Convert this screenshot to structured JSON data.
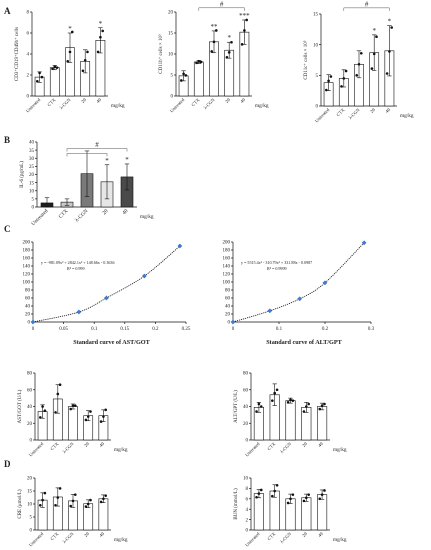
{
  "panel_labels": [
    "A",
    "B",
    "C",
    "D"
  ],
  "chart_data": [
    {
      "id": "A1",
      "panel": "A",
      "type": "bar",
      "categories": [
        "Untreated",
        "CTX",
        "λ-CGN",
        "20",
        "40"
      ],
      "unit": "mg/kg",
      "ylabel": "CD3⁺CD19⁺CD49b⁺ cells",
      "ylim": [
        0,
        8
      ],
      "yticks": [
        0,
        2,
        4,
        6,
        8
      ],
      "values": [
        1.8,
        2.7,
        4.6,
        3.3,
        5.3
      ],
      "errors": [
        0.5,
        0.2,
        1.4,
        1.1,
        1.2
      ],
      "points": [
        [
          1.4,
          2.2,
          1.8
        ],
        [
          2.6,
          2.8,
          2.7
        ],
        [
          3.3,
          4.2,
          6.1
        ],
        [
          2.4,
          3.4,
          4.2
        ],
        [
          4.2,
          5.6,
          6.2
        ]
      ],
      "fills": [
        "#ffffff",
        "#ffffff",
        "#ffffff",
        "#ffffff",
        "#ffffff"
      ],
      "annotations": [
        {
          "cat": 2,
          "text": "*"
        },
        {
          "cat": 4,
          "text": "*"
        }
      ],
      "brackets": []
    },
    {
      "id": "A2",
      "panel": "A",
      "type": "bar",
      "categories": [
        "Untreated",
        "CTX",
        "λ-CGN",
        "20",
        "40"
      ],
      "unit": "mg/kg",
      "ylabel": "CD11b⁺ cells × 10⁵",
      "ylim": [
        0,
        20
      ],
      "yticks": [
        0,
        5,
        10,
        15,
        20
      ],
      "values": [
        4.8,
        8.1,
        12.9,
        10.9,
        15.2
      ],
      "errors": [
        1.2,
        0.4,
        2.6,
        1.9,
        2.9
      ],
      "points": [
        [
          3.7,
          5.3,
          4.9
        ],
        [
          7.9,
          8.2,
          8.1
        ],
        [
          10.6,
          12.9,
          15.6
        ],
        [
          9.2,
          10.4,
          12.8
        ],
        [
          12.3,
          15.6,
          18.1
        ]
      ],
      "fills": [
        "#ffffff",
        "#ffffff",
        "#ffffff",
        "#ffffff",
        "#ffffff"
      ],
      "annotations": [
        {
          "cat": 2,
          "text": "**"
        },
        {
          "cat": 3,
          "text": "*"
        },
        {
          "cat": 4,
          "text": "***"
        }
      ],
      "brackets": [
        {
          "from": 1,
          "to": 4,
          "level": 21,
          "text": "#"
        }
      ]
    },
    {
      "id": "A3",
      "panel": "A",
      "type": "bar",
      "categories": [
        "Untreated",
        "CTX",
        "λ-CGN",
        "20",
        "40"
      ],
      "unit": "mg/kg",
      "ylabel": "CD11c⁺ cells × 10⁵",
      "ylim": [
        0,
        15
      ],
      "yticks": [
        0,
        5,
        10,
        15
      ],
      "values": [
        3.8,
        4.5,
        6.8,
        8.7,
        9.0
      ],
      "errors": [
        1.3,
        1.4,
        2.2,
        2.9,
        4.1
      ],
      "points": [
        [
          2.6,
          4.1,
          4.8
        ],
        [
          3.2,
          4.5,
          5.7
        ],
        [
          5.0,
          6.8,
          8.6
        ],
        [
          6.1,
          8.5,
          11.3
        ],
        [
          5.3,
          8.9,
          12.8
        ]
      ],
      "fills": [
        "#ffffff",
        "#ffffff",
        "#ffffff",
        "#ffffff",
        "#ffffff"
      ],
      "annotations": [
        {
          "cat": 3,
          "text": "*"
        },
        {
          "cat": 4,
          "text": "*"
        }
      ],
      "brackets": [
        {
          "from": 1,
          "to": 4,
          "level": 16,
          "text": "#"
        }
      ]
    },
    {
      "id": "B",
      "panel": "B",
      "type": "bar",
      "categories": [
        "Untreated",
        "CTX",
        "λ-CGN",
        "20",
        "40"
      ],
      "unit": "mg/kg",
      "ylabel": "IL-6 (pg/mL)",
      "ylim": [
        0,
        40
      ],
      "yticks": [
        0,
        5,
        10,
        15,
        20,
        25,
        30,
        35,
        40
      ],
      "values": [
        2.5,
        3.0,
        20.5,
        15.5,
        18.5
      ],
      "errors": [
        3.2,
        2.0,
        14.0,
        10.5,
        8.0
      ],
      "points": [],
      "fills": [
        "#1e1e1e",
        "#c8c8c8",
        "#7a7a7a",
        "#e6e6e6",
        "#4a4a4a"
      ],
      "annotations": [
        {
          "cat": 3,
          "text": "*"
        },
        {
          "cat": 4,
          "text": "*"
        }
      ],
      "brackets": [
        {
          "from": 1,
          "to": 4,
          "level": 36,
          "text": "#"
        },
        {
          "from": 1,
          "to": 3,
          "level": 33,
          "text": ""
        }
      ]
    },
    {
      "id": "C1",
      "panel": "C",
      "type": "line",
      "title": "Standard curve of AST/GOT",
      "xlim": [
        0,
        0.25
      ],
      "xticks": [
        0,
        0.05,
        0.1,
        0.15,
        0.2,
        0.25
      ],
      "ylim": [
        0,
        200
      ],
      "yticks": [
        0,
        20,
        40,
        60,
        80,
        100,
        120,
        140,
        160,
        180,
        200
      ],
      "x": [
        0,
        0.075,
        0.12,
        0.182,
        0.24
      ],
      "y": [
        0,
        25,
        60,
        115,
        190
      ],
      "equation": "y = -981.09x³ + 2842.1x² + 148.66x - 0.3636",
      "r2": "R² = 0.999"
    },
    {
      "id": "C2",
      "panel": "C",
      "type": "line",
      "title": "Standard curve of ALT/GPT",
      "xlim": [
        0,
        0.3
      ],
      "xticks": [
        0,
        0.1,
        0.2,
        0.3
      ],
      "ylim": [
        0,
        200
      ],
      "yticks": [
        0,
        20,
        40,
        60,
        80,
        100,
        120,
        140,
        160,
        180,
        200
      ],
      "x": [
        0,
        0.08,
        0.145,
        0.2,
        0.285
      ],
      "y": [
        0,
        28,
        58,
        98,
        198
      ],
      "equation": "y = 5515.4x³ - 310.79x² + 331.88x - 0.0987",
      "r2": "R² = 0.9999"
    },
    {
      "id": "C3",
      "panel": "C",
      "type": "bar",
      "categories": [
        "Untreated",
        "CTX",
        "λ-CGN",
        "20",
        "40"
      ],
      "unit": "mg/kg",
      "ylabel": "AST/GOT (U/L)",
      "ylim": [
        0,
        80
      ],
      "yticks": [
        0,
        20,
        40,
        60,
        80
      ],
      "values": [
        34,
        49,
        40,
        29,
        29
      ],
      "errors": [
        8,
        17,
        3,
        6,
        7
      ],
      "points": [
        [
          27,
          40,
          35
        ],
        [
          33,
          55,
          66
        ],
        [
          37,
          41,
          41
        ],
        [
          24,
          28,
          34
        ],
        [
          22,
          28,
          36
        ]
      ],
      "fills": [
        "#ffffff",
        "#ffffff",
        "#ffffff",
        "#ffffff",
        "#ffffff"
      ],
      "annotations": [],
      "brackets": []
    },
    {
      "id": "C4",
      "panel": "C",
      "type": "bar",
      "categories": [
        "Untreated",
        "CTX",
        "λ-CGN",
        "20",
        "40"
      ],
      "unit": "mg/kg",
      "ylabel": "ALT/GPT (U/L)",
      "ylim": [
        0,
        80
      ],
      "yticks": [
        0,
        20,
        40,
        60,
        80
      ],
      "values": [
        39,
        54,
        47,
        39,
        40
      ],
      "errors": [
        6,
        13,
        3,
        6,
        4
      ],
      "points": [
        [
          34,
          43,
          40
        ],
        [
          47,
          56,
          60
        ],
        [
          45,
          48,
          47
        ],
        [
          34,
          40,
          43
        ],
        [
          37,
          41,
          43
        ]
      ],
      "fills": [
        "#ffffff",
        "#ffffff",
        "#ffffff",
        "#ffffff",
        "#ffffff"
      ],
      "annotations": [],
      "brackets": []
    },
    {
      "id": "D1",
      "panel": "D",
      "type": "bar",
      "categories": [
        "Untreated",
        "CTX",
        "λ-CGN",
        "20",
        "40"
      ],
      "unit": "mg/kg",
      "ylabel": "CRE (μmol/L)",
      "ylim": [
        0,
        20
      ],
      "yticks": [
        0,
        5,
        10,
        15,
        20
      ],
      "values": [
        11.5,
        12.7,
        11.2,
        10.1,
        12.0
      ],
      "errors": [
        2.8,
        3.5,
        2.5,
        1.5,
        1.5
      ],
      "points": [
        [
          9.5,
          11.5,
          14.2
        ],
        [
          9.5,
          12.5,
          16.0
        ],
        [
          9.2,
          11.2,
          13.6
        ],
        [
          9.0,
          10.0,
          11.5
        ],
        [
          10.8,
          12.0,
          13.2
        ]
      ],
      "fills": [
        "#ffffff",
        "#ffffff",
        "#ffffff",
        "#ffffff",
        "#ffffff"
      ],
      "annotations": [],
      "brackets": []
    },
    {
      "id": "D2",
      "panel": "D",
      "type": "bar",
      "categories": [
        "Untreated",
        "CTX",
        "λ-CGN",
        "20",
        "40"
      ],
      "unit": "mg/kg",
      "ylabel": "BUN (mmol/L)",
      "ylim": [
        0,
        10
      ],
      "yticks": [
        0,
        2,
        4,
        6,
        8,
        10
      ],
      "values": [
        7.0,
        7.5,
        6.0,
        6.2,
        6.8
      ],
      "errors": [
        0.8,
        1.2,
        0.9,
        0.7,
        0.9
      ],
      "points": [
        [
          6.3,
          7.0,
          7.7
        ],
        [
          6.5,
          7.5,
          8.6
        ],
        [
          5.2,
          6.0,
          6.8
        ],
        [
          5.6,
          6.2,
          6.8
        ],
        [
          6.0,
          6.8,
          7.6
        ]
      ],
      "fills": [
        "#ffffff",
        "#ffffff",
        "#ffffff",
        "#ffffff",
        "#ffffff"
      ],
      "annotations": [],
      "brackets": []
    }
  ]
}
